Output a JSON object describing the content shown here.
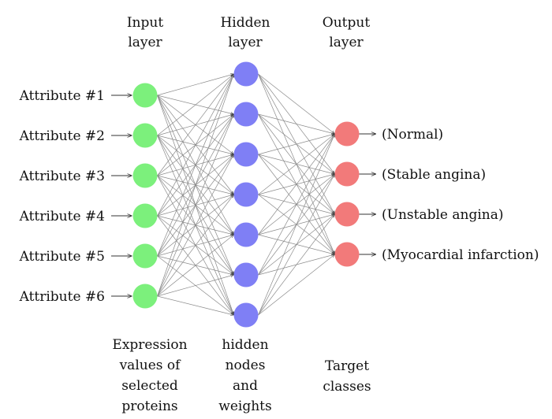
{
  "headers": {
    "input": [
      "Input",
      "layer"
    ],
    "hidden": [
      "Hidden",
      "layer"
    ],
    "output": [
      "Output",
      "layer"
    ]
  },
  "input_labels": [
    "Attribute #1",
    "Attribute #2",
    "Attribute #3",
    "Attribute #4",
    "Attribute #5",
    "Attribute #6"
  ],
  "output_labels": [
    "(Normal)",
    "(Stable angina)",
    "(Unstable angina)",
    "(Myocardial infarction)"
  ],
  "hidden_node_count": 7,
  "captions": {
    "input": [
      "Expression",
      "values of",
      "selected",
      "proteins"
    ],
    "hidden": [
      "hidden",
      "nodes",
      "and",
      "weights"
    ],
    "output": [
      "Target",
      "classes"
    ]
  },
  "colors": {
    "input_node": "#7cf07c",
    "hidden_node": "#7f7ff5",
    "output_node": "#f27a7a",
    "edge": "#8a8a8a"
  }
}
